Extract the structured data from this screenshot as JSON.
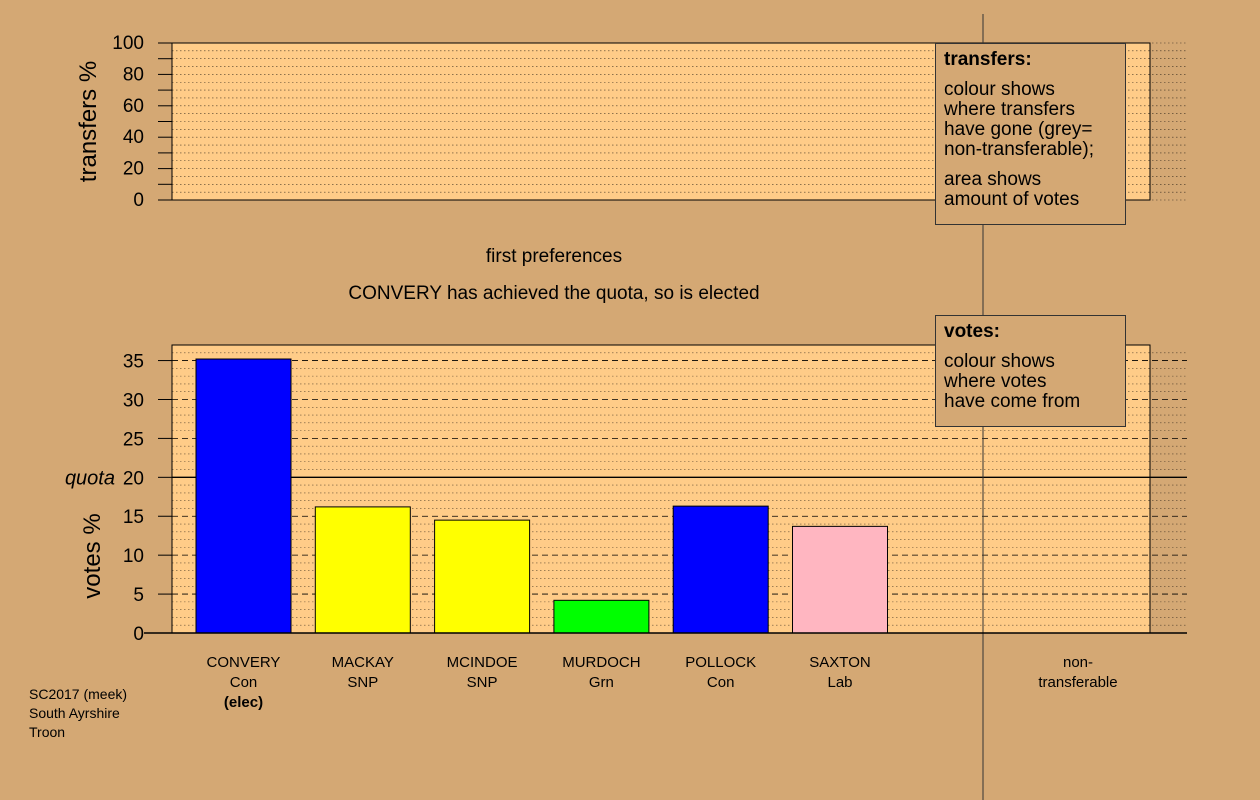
{
  "chart_data": [
    {
      "type": "bar",
      "ylabel": "transfers %",
      "ylim": [
        0,
        100
      ],
      "yticks": [
        0,
        20,
        40,
        60,
        80,
        100
      ],
      "values": []
    },
    {
      "type": "bar",
      "subtitle": "first preferences",
      "title": "CONVERY has achieved the quota, so is elected",
      "ylabel": "votes %",
      "ylim": [
        0,
        37
      ],
      "yticks": [
        0,
        5,
        10,
        15,
        20,
        25,
        30,
        35
      ],
      "quota": 20,
      "quota_label": "quota",
      "categories": [
        "CONVERY",
        "MACKAY",
        "MCINDOE",
        "MURDOCH",
        "POLLOCK",
        "SAXTON"
      ],
      "parties": [
        "Con",
        "SNP",
        "SNP",
        "Grn",
        "Con",
        "Lab"
      ],
      "values": [
        35.2,
        16.2,
        14.5,
        4.2,
        16.3,
        13.7
      ],
      "colors": [
        "#0000ff",
        "#ffff00",
        "#ffff00",
        "#00ff00",
        "#0000ff",
        "#ffb6c1"
      ],
      "elected_note": "(elec)",
      "nontransferable_label": [
        "non-",
        "transferable"
      ]
    }
  ],
  "legends": {
    "transfers": {
      "title": "transfers:",
      "lines1": [
        "colour shows",
        "where transfers",
        "have gone (grey=",
        "non-transferable);"
      ],
      "lines2": [
        "area shows",
        "amount of votes"
      ]
    },
    "votes": {
      "title": "votes:",
      "lines1": [
        "colour shows",
        "where votes",
        "have come from"
      ]
    }
  },
  "footer": [
    "SC2017 (meek)",
    "South Ayrshire",
    "Troon"
  ],
  "colors": {
    "background": "#d4a874",
    "plot_bg": "#ffcc88"
  }
}
